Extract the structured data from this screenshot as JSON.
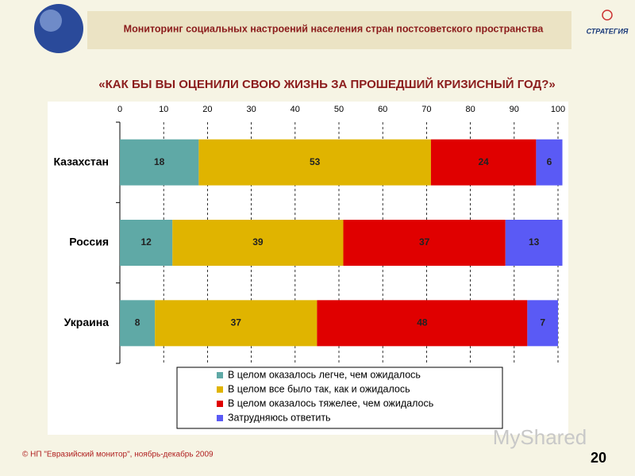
{
  "header": {
    "title": "Мониторинг социальных настроений населения стран постсоветского пространства",
    "logo": "СТРАТЕГИЯ"
  },
  "chart_data": {
    "type": "stacked-bar-horizontal",
    "title": "«КАК БЫ ВЫ ОЦЕНИЛИ СВОЮ ЖИЗНЬ ЗА ПРОШЕДШИЙ КРИЗИСНЫЙ ГОД?»",
    "categories": [
      "Казахстан",
      "Россия",
      "Украина"
    ],
    "series": [
      {
        "name": "В целом оказалось легче, чем ожидалось",
        "color": "#5fa9a6",
        "values": [
          18,
          12,
          8
        ]
      },
      {
        "name": "В целом все было так, как и ожидалось",
        "color": "#e0b400",
        "values": [
          53,
          39,
          37
        ]
      },
      {
        "name": "В целом оказалось тяжелее, чем ожидалось",
        "color": "#e00000",
        "values": [
          24,
          37,
          48
        ]
      },
      {
        "name": "Затрудняюсь ответить",
        "color": "#5a5af5",
        "values": [
          6,
          13,
          7
        ]
      }
    ],
    "xlim": [
      0,
      100
    ],
    "xticks": [
      0,
      10,
      20,
      30,
      40,
      50,
      60,
      70,
      80,
      90,
      100
    ],
    "grid": true
  },
  "footer": {
    "source": "© НП \"Евразийский монитор\", ноябрь-декабрь 2009",
    "page": "20",
    "watermark": "MyShared"
  }
}
